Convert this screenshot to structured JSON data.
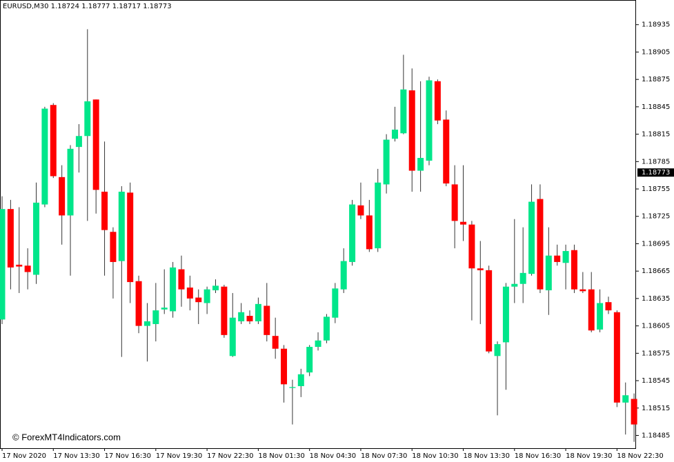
{
  "chart_data": {
    "type": "candlestick",
    "title": "EURUSD,M30  1.18724 1.18777 1.18717 1.18773",
    "watermark": "© ForexMT4Indicators.com",
    "up_color": "#00e68a",
    "down_color": "#ff0000",
    "wick_color": "#333333",
    "last_price": 1.18773,
    "categories": [
      "17 Nov 2020",
      null,
      null,
      null,
      null,
      null,
      "17 Nov 13:30",
      null,
      null,
      null,
      null,
      null,
      "17 Nov 16:30",
      null,
      null,
      null,
      null,
      null,
      "17 Nov 19:30",
      null,
      null,
      null,
      null,
      null,
      "17 Nov 22:30",
      null,
      null,
      null,
      null,
      null,
      "18 Nov 01:30",
      null,
      null,
      null,
      null,
      null,
      "18 Nov 04:30",
      null,
      null,
      null,
      null,
      null,
      "18 Nov 07:30",
      null,
      null,
      null,
      null,
      null,
      "18 Nov 10:30",
      null,
      null,
      null,
      null,
      null,
      "18 Nov 13:30",
      null,
      null,
      null,
      null,
      null,
      "18 Nov 16:30",
      null,
      null,
      null,
      null,
      null,
      "18 Nov 19:30",
      null,
      null,
      null,
      null,
      null,
      "18 Nov 22:30",
      null,
      null
    ],
    "open": [
      1.18612,
      1.18733,
      1.18672,
      1.18671,
      1.18661,
      1.18738,
      1.18847,
      1.18768,
      1.18726,
      1.18801,
      1.18813,
      1.18853,
      1.18752,
      1.18708,
      1.18676,
      1.18751,
      1.18654,
      1.18605,
      1.18607,
      1.18623,
      1.18621,
      1.18667,
      1.18647,
      1.18636,
      1.1863,
      1.18644,
      1.18648,
      1.18572,
      1.1861,
      1.18616,
      1.1861,
      1.18627,
      1.18594,
      1.1858,
      1.18537,
      1.18539,
      1.18554,
      1.18582,
      1.18589,
      1.18614,
      1.18645,
      1.18675,
      1.18737,
      1.18726,
      1.1869,
      1.1876,
      1.1881,
      1.18816,
      1.18863,
      1.18775,
      1.18786,
      1.18873,
      1.18831,
      1.1876,
      1.18719,
      1.18716,
      1.18668,
      1.18666,
      1.18572,
      1.18587,
      1.18648,
      1.18651,
      1.18662,
      1.18744,
      1.18644,
      1.18682,
      1.18674,
      1.18688,
      1.18645,
      1.18645,
      1.18601,
      1.18631,
      1.1862,
      1.18521,
      1.18525
    ],
    "high": [
      1.18747,
      1.18743,
      1.18735,
      1.1869,
      1.18762,
      1.18845,
      1.18849,
      1.18781,
      1.18803,
      1.18826,
      1.1893,
      1.18853,
      1.18807,
      1.18713,
      1.18758,
      1.18762,
      1.1866,
      1.1863,
      1.18652,
      1.18667,
      1.18675,
      1.18682,
      1.1866,
      1.18645,
      1.18648,
      1.18656,
      1.1865,
      1.18641,
      1.1863,
      1.18622,
      1.18636,
      1.18652,
      1.18614,
      1.18584,
      1.18546,
      1.18558,
      1.18584,
      1.18598,
      1.18618,
      1.18652,
      1.1869,
      1.18743,
      1.18762,
      1.18743,
      1.18777,
      1.18815,
      1.18845,
      1.18902,
      1.18887,
      1.18873,
      1.18878,
      1.18875,
      1.18841,
      1.18781,
      1.18781,
      1.1872,
      1.18698,
      1.18671,
      1.18588,
      1.18652,
      1.18722,
      1.18713,
      1.1876,
      1.1876,
      1.18713,
      1.18694,
      1.18694,
      1.18694,
      1.18664,
      1.18664,
      1.18645,
      1.18637,
      1.18622,
      1.18543,
      1.18531
    ],
    "low": [
      1.18607,
      1.18645,
      1.18641,
      1.18645,
      1.18651,
      1.18735,
      1.18767,
      1.18694,
      1.1866,
      1.18773,
      1.1872,
      1.18728,
      1.1866,
      1.18635,
      1.18571,
      1.1863,
      1.18597,
      1.18566,
      1.18588,
      1.18618,
      1.18614,
      1.18626,
      1.18622,
      1.18607,
      1.18618,
      1.18641,
      1.18592,
      1.18571,
      1.18607,
      1.18607,
      1.18607,
      1.18588,
      1.18569,
      1.18521,
      1.18497,
      1.18527,
      1.1855,
      1.18578,
      1.18586,
      1.18608,
      1.18641,
      1.18671,
      1.18722,
      1.18686,
      1.18686,
      1.1875,
      1.18807,
      1.18815,
      1.18752,
      1.18752,
      1.18781,
      1.18826,
      1.18758,
      1.1869,
      1.18698,
      1.18611,
      1.18607,
      1.18575,
      1.18507,
      1.18535,
      1.1863,
      1.1863,
      1.1866,
      1.18641,
      1.18617,
      1.18671,
      1.18645,
      1.18641,
      1.18641,
      1.18598,
      1.18598,
      1.18618,
      1.18516,
      1.18486,
      1.18478
    ],
    "close": [
      1.18733,
      1.18669,
      1.1867,
      1.18664,
      1.1874,
      1.18843,
      1.18769,
      1.18726,
      1.18799,
      1.18813,
      1.18851,
      1.18754,
      1.1871,
      1.18675,
      1.18752,
      1.18653,
      1.18605,
      1.1861,
      1.18622,
      1.18625,
      1.18669,
      1.18645,
      1.18635,
      1.18631,
      1.18645,
      1.18649,
      1.18595,
      1.18614,
      1.1862,
      1.1861,
      1.18629,
      1.18595,
      1.1858,
      1.18541,
      1.18538,
      1.18552,
      1.18582,
      1.18589,
      1.18615,
      1.18646,
      1.18676,
      1.18738,
      1.18726,
      1.18689,
      1.18762,
      1.18809,
      1.1882,
      1.18864,
      1.18775,
      1.18789,
      1.18874,
      1.1883,
      1.18761,
      1.1872,
      1.18716,
      1.18668,
      1.18666,
      1.18577,
      1.18585,
      1.18648,
      1.18651,
      1.18663,
      1.18741,
      1.18645,
      1.18682,
      1.18675,
      1.18687,
      1.18645,
      1.18643,
      1.186,
      1.1863,
      1.18622,
      1.18521,
      1.18529,
      1.18497
    ],
    "ylim": [
      1.18471,
      1.18962
    ],
    "yticks": [
      1.18485,
      1.18515,
      1.18545,
      1.18575,
      1.18605,
      1.18635,
      1.18665,
      1.18695,
      1.18725,
      1.18755,
      1.18785,
      1.18815,
      1.18845,
      1.18875,
      1.18905,
      1.18935
    ]
  }
}
